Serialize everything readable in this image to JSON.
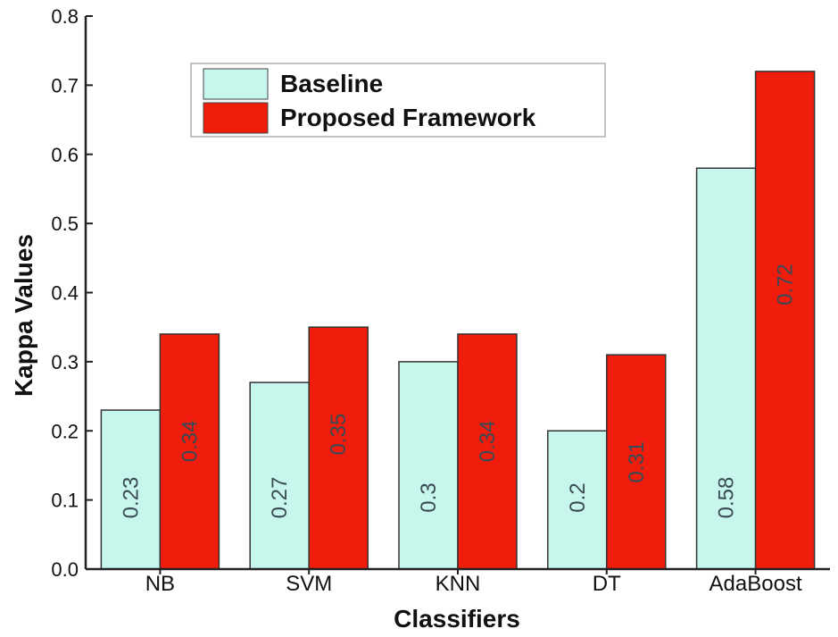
{
  "chart_data": {
    "type": "bar",
    "title": "",
    "xlabel": "Classifiers",
    "ylabel": "Kappa Values",
    "categories": [
      "NB",
      "SVM",
      "KNN",
      "DT",
      "AdaBoost"
    ],
    "series": [
      {
        "name": "Baseline",
        "values": [
          0.23,
          0.27,
          0.3,
          0.2,
          0.58
        ],
        "labels": [
          "0.23",
          "0.27",
          "0.3",
          "0.2",
          "0.58"
        ],
        "color": "#c6f6ec"
      },
      {
        "name": "Proposed Framework",
        "values": [
          0.34,
          0.35,
          0.34,
          0.31,
          0.72
        ],
        "labels": [
          "0.34",
          "0.35",
          "0.34",
          "0.31",
          "0.72"
        ],
        "color": "#f01c0c"
      }
    ],
    "ylim": [
      0,
      0.8
    ],
    "yticks": [
      "0.0",
      "0.1",
      "0.2",
      "0.3",
      "0.4",
      "0.5",
      "0.6",
      "0.7",
      "0.8"
    ],
    "legend_position": "top-left",
    "grid": false
  }
}
